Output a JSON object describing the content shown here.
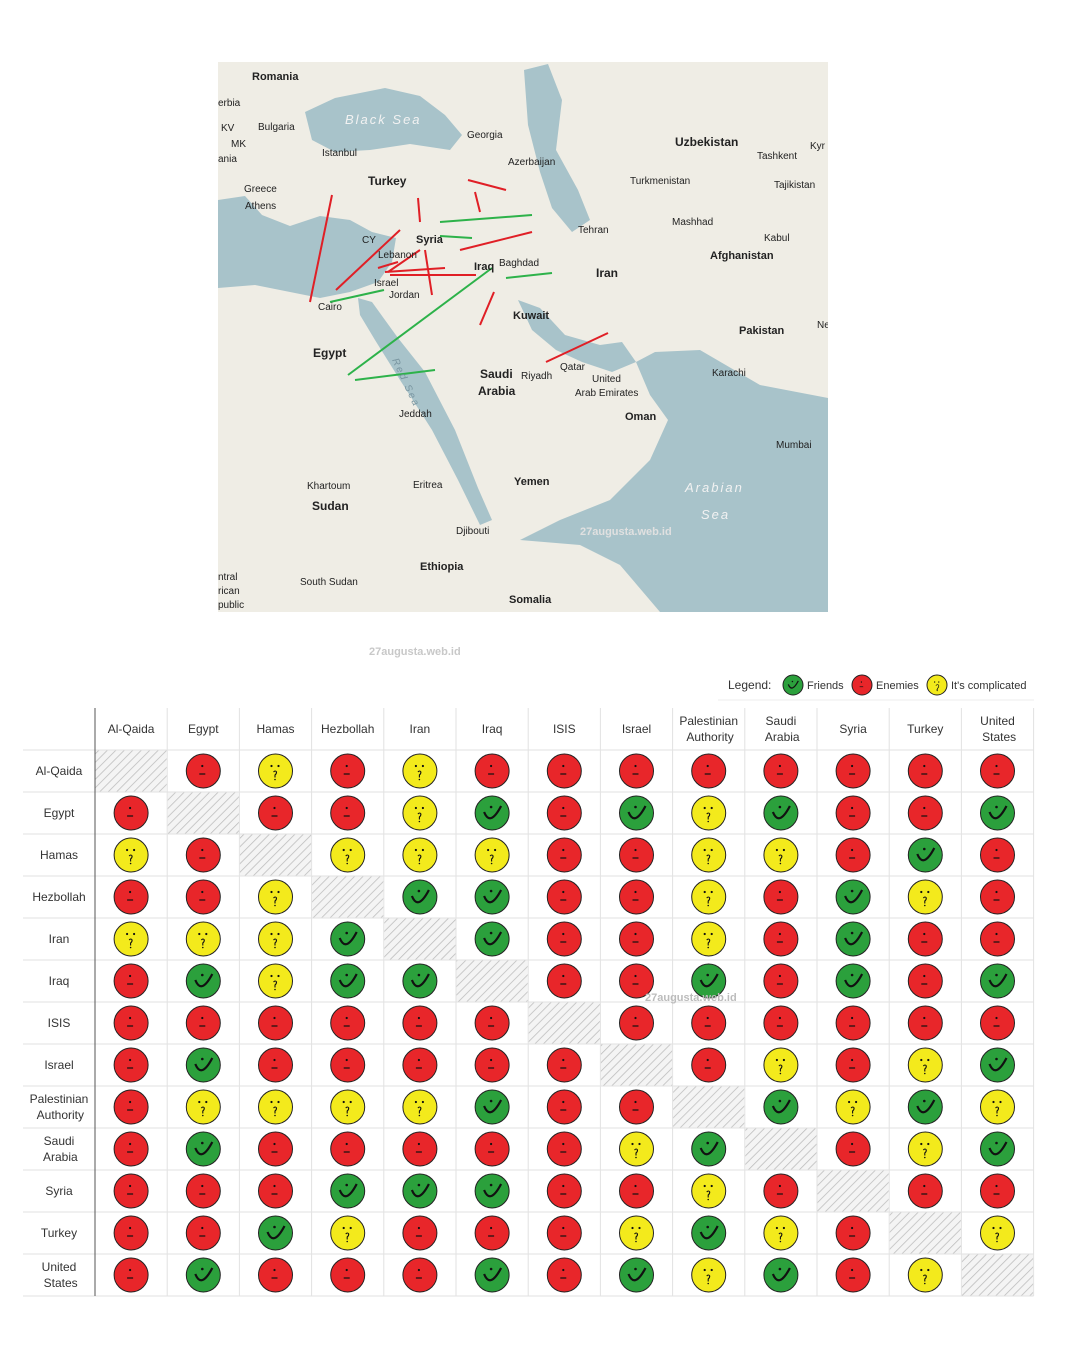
{
  "watermark": "27augusta.web.id",
  "map": {
    "labels": [
      "Romania",
      "erbia",
      "KV",
      "Bulgaria",
      "MK",
      "ania",
      "Black Sea",
      "Istanbul",
      "Georgia",
      "Azerbaijan",
      "Uzbekistan",
      "Tashkent",
      "Kyr",
      "Turkmenistan",
      "Tajikistan",
      "Turkey",
      "Greece",
      "Athens",
      "Mashhad",
      "CY",
      "Syria",
      "Tehran",
      "Kabul",
      "Lebanon",
      "Baghdad",
      "Iraq",
      "Afghanistan",
      "Iran",
      "Israel",
      "Jordan",
      "Cairo",
      "Kuwait",
      "Pakistan",
      "Ne",
      "Egypt",
      "Qatar",
      "Saudi",
      "Arabia",
      "Riyadh",
      "United",
      "Arab Emirates",
      "Karachi",
      "Oman",
      "Jeddah",
      "Red Sea",
      "Mumbai",
      "Arabian",
      "Sea",
      "Khartoum",
      "Eritrea",
      "Yemen",
      "Sudan",
      "Djibouti",
      "Ethiopia",
      "ntral",
      "rican",
      "public",
      "South Sudan",
      "Somalia"
    ]
  },
  "legend": {
    "title": "Legend:",
    "items": [
      {
        "label": "Friends",
        "color": "#2ba03c"
      },
      {
        "label": "Enemies",
        "color": "#e8262a"
      },
      {
        "label": "It's complicated",
        "color": "#f3ea1c"
      }
    ]
  },
  "table": {
    "columns": [
      "Al-Qaida",
      "Egypt",
      "Hamas",
      "Hezbollah",
      "Iran",
      "Iraq",
      "ISIS",
      "Israel",
      "Palestinian Authority",
      "Saudi Arabia",
      "Syria",
      "Turkey",
      "United States"
    ],
    "rows": [
      {
        "label": "Al-Qaida",
        "cells": [
          null,
          1,
          2,
          1,
          2,
          1,
          1,
          1,
          1,
          1,
          1,
          1,
          1
        ]
      },
      {
        "label": "Egypt",
        "cells": [
          1,
          null,
          1,
          1,
          2,
          0,
          1,
          0,
          2,
          0,
          1,
          1,
          0
        ]
      },
      {
        "label": "Hamas",
        "cells": [
          2,
          1,
          null,
          2,
          2,
          2,
          1,
          1,
          2,
          2,
          1,
          0,
          1
        ]
      },
      {
        "label": "Hezbollah",
        "cells": [
          1,
          1,
          2,
          null,
          0,
          0,
          1,
          1,
          2,
          1,
          0,
          2,
          1
        ]
      },
      {
        "label": "Iran",
        "cells": [
          2,
          2,
          2,
          0,
          null,
          0,
          1,
          1,
          2,
          1,
          0,
          1,
          1
        ]
      },
      {
        "label": "Iraq",
        "cells": [
          1,
          0,
          2,
          0,
          0,
          null,
          1,
          1,
          0,
          1,
          0,
          1,
          0
        ]
      },
      {
        "label": "ISIS",
        "cells": [
          1,
          1,
          1,
          1,
          1,
          1,
          null,
          1,
          1,
          1,
          1,
          1,
          1
        ]
      },
      {
        "label": "Israel",
        "cells": [
          1,
          0,
          1,
          1,
          1,
          1,
          1,
          null,
          1,
          2,
          1,
          2,
          0
        ]
      },
      {
        "label": "Palestinian Authority",
        "cells": [
          1,
          2,
          2,
          2,
          2,
          0,
          1,
          1,
          null,
          0,
          2,
          0,
          2
        ]
      },
      {
        "label": "Saudi Arabia",
        "cells": [
          1,
          0,
          1,
          1,
          1,
          1,
          1,
          2,
          0,
          null,
          1,
          2,
          0
        ]
      },
      {
        "label": "Syria",
        "cells": [
          1,
          1,
          1,
          0,
          0,
          0,
          1,
          1,
          2,
          1,
          null,
          1,
          1
        ]
      },
      {
        "label": "Turkey",
        "cells": [
          1,
          1,
          0,
          2,
          1,
          1,
          1,
          2,
          0,
          2,
          1,
          null,
          2
        ]
      },
      {
        "label": "United States",
        "cells": [
          1,
          0,
          1,
          1,
          1,
          0,
          1,
          0,
          2,
          0,
          1,
          2,
          null
        ]
      }
    ]
  }
}
